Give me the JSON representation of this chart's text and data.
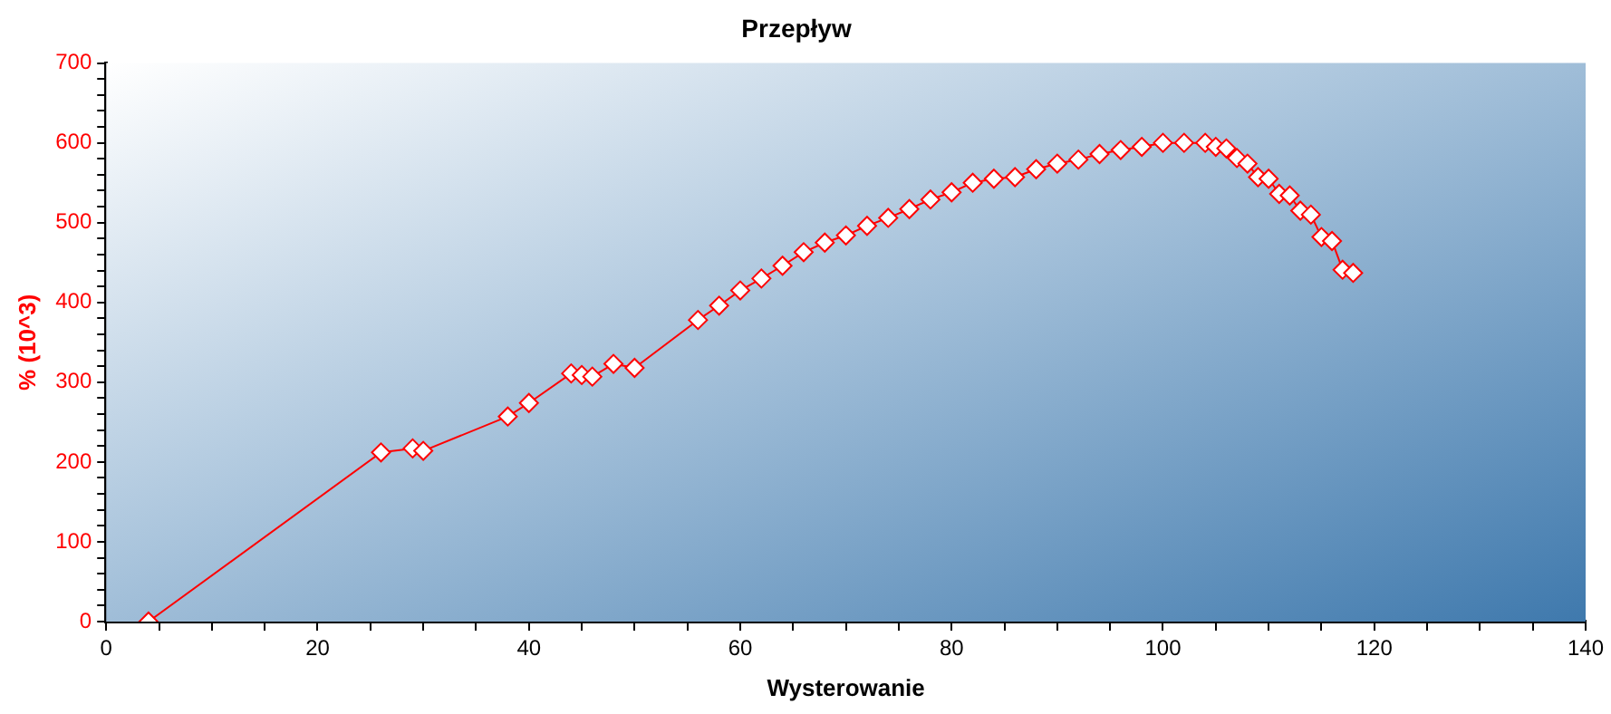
{
  "chart_data": {
    "type": "line",
    "title": "Przepływ",
    "xlabel": "Wysterowanie",
    "ylabel": "% (10^3)",
    "x": [
      4,
      26,
      29,
      30,
      38,
      40,
      44,
      45,
      46,
      48,
      50,
      56,
      58,
      60,
      62,
      64,
      66,
      68,
      70,
      72,
      74,
      76,
      78,
      80,
      82,
      84,
      86,
      88,
      90,
      92,
      94,
      96,
      98,
      100,
      102,
      104,
      105,
      106,
      107,
      108,
      109,
      110,
      111,
      112,
      113,
      114,
      115,
      116,
      117,
      118
    ],
    "series": [
      {
        "color": "#ff0000",
        "values": [
          0,
          212,
          217,
          214,
          257,
          274,
          311,
          309,
          307,
          323,
          318,
          378,
          396,
          415,
          430,
          446,
          463,
          475,
          484,
          496,
          506,
          517,
          529,
          538,
          550,
          555,
          557,
          567,
          574,
          579,
          586,
          591,
          595,
          600,
          600,
          600,
          595,
          593,
          581,
          574,
          557,
          555,
          536,
          534,
          515,
          510,
          482,
          477,
          441,
          437
        ]
      }
    ],
    "xlim": [
      0,
      140
    ],
    "xticks": [
      0,
      {
        "value": 5,
        "label": null
      },
      {
        "value": 10,
        "label": null
      },
      {
        "value": 15,
        "label": null
      },
      20,
      {
        "value": 25,
        "label": null
      },
      {
        "value": 30,
        "label": null
      },
      {
        "value": 35,
        "label": null
      },
      40,
      {
        "value": 45,
        "label": null
      },
      {
        "value": 50,
        "label": null
      },
      {
        "value": 55,
        "label": null
      },
      60,
      {
        "value": 65,
        "label": null
      },
      {
        "value": 70,
        "label": null
      },
      {
        "value": 75,
        "label": null
      },
      80,
      {
        "value": 85,
        "label": null
      },
      {
        "value": 90,
        "label": null
      },
      {
        "value": 95,
        "label": null
      },
      100,
      {
        "value": 105,
        "label": null
      },
      {
        "value": 110,
        "label": null
      },
      {
        "value": 115,
        "label": null
      },
      120,
      {
        "value": 125,
        "label": null
      },
      {
        "value": 130,
        "label": null
      },
      {
        "value": 135,
        "label": null
      },
      140
    ],
    "ylim": [
      0,
      700
    ],
    "yticks": [
      0,
      {
        "value": 20,
        "label": null
      },
      {
        "value": 40,
        "label": null
      },
      {
        "value": 60,
        "label": null
      },
      {
        "value": 80,
        "label": null
      },
      100,
      {
        "value": 120,
        "label": null
      },
      {
        "value": 140,
        "label": null
      },
      {
        "value": 160,
        "label": null
      },
      {
        "value": 180,
        "label": null
      },
      200,
      {
        "value": 220,
        "label": null
      },
      {
        "value": 240,
        "label": null
      },
      {
        "value": 260,
        "label": null
      },
      {
        "value": 280,
        "label": null
      },
      300,
      {
        "value": 320,
        "label": null
      },
      {
        "value": 340,
        "label": null
      },
      {
        "value": 360,
        "label": null
      },
      {
        "value": 380,
        "label": null
      },
      400,
      {
        "value": 420,
        "label": null
      },
      {
        "value": 440,
        "label": null
      },
      {
        "value": 460,
        "label": null
      },
      {
        "value": 480,
        "label": null
      },
      500,
      {
        "value": 520,
        "label": null
      },
      {
        "value": 540,
        "label": null
      },
      {
        "value": 560,
        "label": null
      },
      {
        "value": 580,
        "label": null
      },
      600,
      {
        "value": 620,
        "label": null
      },
      {
        "value": 640,
        "label": null
      },
      {
        "value": 660,
        "label": null
      },
      {
        "value": 680,
        "label": null
      },
      700
    ],
    "grid": false,
    "legend": false,
    "marker": "diamond",
    "line_style": "solid"
  }
}
